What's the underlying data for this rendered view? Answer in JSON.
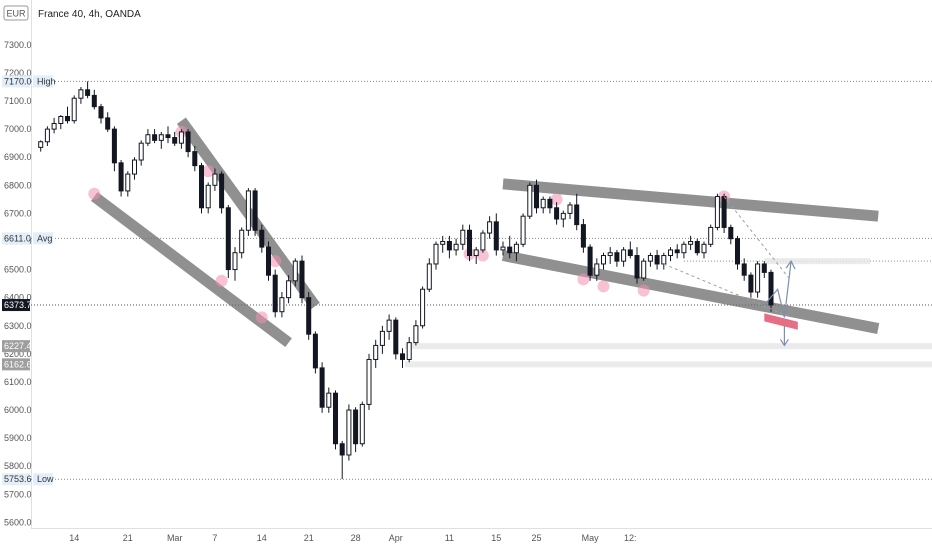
{
  "header": {
    "currency_badge": "EUR",
    "title": "France 40, 4h, OANDA"
  },
  "chart_data": {
    "type": "candlestick",
    "ylim": [
      5580,
      7360
    ],
    "y_ticks": [
      5600,
      5700,
      5800,
      5900,
      6000,
      6100,
      6200,
      6300,
      6400,
      6500,
      6600,
      6700,
      6800,
      6900,
      7000,
      7100,
      7200,
      7300
    ],
    "x_ticks": [
      "14",
      "21",
      "Mar",
      "7",
      "14",
      "21",
      "28",
      "Apr",
      "11",
      "15",
      "25",
      "May",
      "12:"
    ],
    "levels": [
      {
        "label": "High",
        "value_text": "7170.0",
        "value": 7170,
        "style": "dotted"
      },
      {
        "label": "Avg",
        "value_text": "6611.0",
        "value": 6611,
        "style": "dotted"
      },
      {
        "label": "",
        "value_text": "6373.7",
        "value": 6373.7,
        "style": "current"
      },
      {
        "label": "Low",
        "value_text": "5753.6",
        "value": 5753.6,
        "style": "dotted"
      }
    ],
    "zone_labels": [
      {
        "value_text": "6227.4",
        "value": 6227.4
      },
      {
        "value_text": "6162.6",
        "value": 6162.6
      }
    ],
    "extra_level": 6530,
    "channels": [
      {
        "from": [
          8,
          6760
        ],
        "to": [
          37,
          6240
        ]
      },
      {
        "from": [
          21,
          7030
        ],
        "to": [
          41,
          6370
        ]
      },
      {
        "from": [
          69,
          6550
        ],
        "to": [
          125,
          6290
        ]
      },
      {
        "from": [
          69,
          6805
        ],
        "to": [
          125,
          6690
        ]
      }
    ],
    "touch_points": [
      {
        "x": 8,
        "y": 6770
      },
      {
        "x": 21,
        "y": 6990
      },
      {
        "x": 25,
        "y": 6850
      },
      {
        "x": 27,
        "y": 6460
      },
      {
        "x": 33,
        "y": 6330
      },
      {
        "x": 35,
        "y": 6530
      },
      {
        "x": 64,
        "y": 6555
      },
      {
        "x": 66,
        "y": 6550
      },
      {
        "x": 77,
        "y": 6750
      },
      {
        "x": 81,
        "y": 6465
      },
      {
        "x": 84,
        "y": 6440
      },
      {
        "x": 90,
        "y": 6425
      },
      {
        "x": 102,
        "y": 6760
      }
    ],
    "candles": [
      [
        6935,
        6960,
        6920,
        6955
      ],
      [
        6955,
        7010,
        6940,
        7000
      ],
      [
        7000,
        7040,
        6985,
        7020
      ],
      [
        7020,
        7050,
        7000,
        7045
      ],
      [
        7045,
        7080,
        7020,
        7030
      ],
      [
        7030,
        7120,
        7020,
        7110
      ],
      [
        7110,
        7150,
        7090,
        7140
      ],
      [
        7140,
        7170,
        7110,
        7120
      ],
      [
        7120,
        7140,
        7070,
        7080
      ],
      [
        7080,
        7090,
        7020,
        7040
      ],
      [
        7040,
        7060,
        6990,
        7000
      ],
      [
        7000,
        7010,
        6850,
        6880
      ],
      [
        6880,
        6890,
        6760,
        6780
      ],
      [
        6780,
        6850,
        6760,
        6840
      ],
      [
        6840,
        6900,
        6820,
        6890
      ],
      [
        6890,
        6960,
        6870,
        6950
      ],
      [
        6950,
        7000,
        6940,
        6980
      ],
      [
        6980,
        7000,
        6950,
        6960
      ],
      [
        6960,
        6990,
        6930,
        6980
      ],
      [
        6980,
        7010,
        6950,
        6970
      ],
      [
        6970,
        6990,
        6940,
        6950
      ],
      [
        6950,
        7000,
        6930,
        6990
      ],
      [
        6990,
        7000,
        6900,
        6920
      ],
      [
        6920,
        6940,
        6850,
        6870
      ],
      [
        6870,
        6880,
        6700,
        6720
      ],
      [
        6720,
        6810,
        6700,
        6800
      ],
      [
        6800,
        6860,
        6780,
        6840
      ],
      [
        6840,
        6850,
        6700,
        6720
      ],
      [
        6720,
        6730,
        6470,
        6500
      ],
      [
        6500,
        6580,
        6460,
        6560
      ],
      [
        6560,
        6650,
        6540,
        6640
      ],
      [
        6640,
        6790,
        6620,
        6780
      ],
      [
        6780,
        6790,
        6620,
        6640
      ],
      [
        6640,
        6660,
        6560,
        6580
      ],
      [
        6580,
        6600,
        6460,
        6480
      ],
      [
        6480,
        6500,
        6330,
        6350
      ],
      [
        6350,
        6420,
        6330,
        6400
      ],
      [
        6400,
        6480,
        6380,
        6460
      ],
      [
        6460,
        6540,
        6440,
        6530
      ],
      [
        6530,
        6550,
        6380,
        6400
      ],
      [
        6400,
        6420,
        6250,
        6270
      ],
      [
        6270,
        6280,
        6130,
        6150
      ],
      [
        6150,
        6170,
        5990,
        6010
      ],
      [
        6010,
        6080,
        5990,
        6060
      ],
      [
        6060,
        6070,
        5860,
        5880
      ],
      [
        5880,
        5890,
        5754,
        5840
      ],
      [
        5840,
        6020,
        5820,
        6000
      ],
      [
        6000,
        6010,
        5850,
        5880
      ],
      [
        5880,
        6030,
        5870,
        6020
      ],
      [
        6020,
        6200,
        6000,
        6180
      ],
      [
        6180,
        6250,
        6150,
        6230
      ],
      [
        6230,
        6300,
        6200,
        6280
      ],
      [
        6280,
        6340,
        6250,
        6320
      ],
      [
        6320,
        6330,
        6180,
        6200
      ],
      [
        6200,
        6220,
        6150,
        6180
      ],
      [
        6180,
        6260,
        6170,
        6240
      ],
      [
        6240,
        6320,
        6230,
        6300
      ],
      [
        6300,
        6440,
        6290,
        6430
      ],
      [
        6430,
        6540,
        6420,
        6520
      ],
      [
        6520,
        6600,
        6500,
        6590
      ],
      [
        6590,
        6620,
        6560,
        6600
      ],
      [
        6600,
        6620,
        6540,
        6570
      ],
      [
        6570,
        6610,
        6550,
        6590
      ],
      [
        6590,
        6660,
        6570,
        6640
      ],
      [
        6640,
        6660,
        6530,
        6550
      ],
      [
        6550,
        6580,
        6520,
        6570
      ],
      [
        6570,
        6640,
        6560,
        6630
      ],
      [
        6630,
        6690,
        6610,
        6670
      ],
      [
        6670,
        6700,
        6550,
        6570
      ],
      [
        6570,
        6600,
        6550,
        6580
      ],
      [
        6580,
        6620,
        6540,
        6560
      ],
      [
        6560,
        6600,
        6530,
        6590
      ],
      [
        6590,
        6700,
        6580,
        6690
      ],
      [
        6690,
        6810,
        6680,
        6800
      ],
      [
        6800,
        6820,
        6700,
        6720
      ],
      [
        6720,
        6760,
        6700,
        6750
      ],
      [
        6750,
        6760,
        6700,
        6720
      ],
      [
        6720,
        6740,
        6660,
        6680
      ],
      [
        6680,
        6710,
        6650,
        6700
      ],
      [
        6700,
        6740,
        6680,
        6730
      ],
      [
        6730,
        6770,
        6640,
        6660
      ],
      [
        6660,
        6680,
        6560,
        6580
      ],
      [
        6580,
        6590,
        6460,
        6480
      ],
      [
        6480,
        6540,
        6460,
        6520
      ],
      [
        6520,
        6560,
        6500,
        6550
      ],
      [
        6550,
        6580,
        6520,
        6560
      ],
      [
        6560,
        6570,
        6510,
        6530
      ],
      [
        6530,
        6580,
        6510,
        6570
      ],
      [
        6570,
        6600,
        6540,
        6550
      ],
      [
        6550,
        6580,
        6450,
        6470
      ],
      [
        6470,
        6540,
        6460,
        6530
      ],
      [
        6530,
        6560,
        6510,
        6550
      ],
      [
        6550,
        6570,
        6500,
        6520
      ],
      [
        6520,
        6560,
        6500,
        6550
      ],
      [
        6550,
        6580,
        6530,
        6570
      ],
      [
        6570,
        6590,
        6540,
        6560
      ],
      [
        6560,
        6600,
        6540,
        6590
      ],
      [
        6590,
        6620,
        6570,
        6600
      ],
      [
        6600,
        6610,
        6550,
        6560
      ],
      [
        6560,
        6600,
        6540,
        6590
      ],
      [
        6590,
        6660,
        6580,
        6650
      ],
      [
        6650,
        6770,
        6640,
        6760
      ],
      [
        6760,
        6770,
        6630,
        6650
      ],
      [
        6650,
        6660,
        6590,
        6610
      ],
      [
        6610,
        6620,
        6500,
        6520
      ],
      [
        6520,
        6540,
        6460,
        6480
      ],
      [
        6480,
        6490,
        6400,
        6420
      ],
      [
        6420,
        6530,
        6400,
        6520
      ],
      [
        6520,
        6530,
        6470,
        6490
      ],
      [
        6490,
        6500,
        6350,
        6374
      ]
    ],
    "x_tick_positions": [
      5,
      13,
      20,
      26,
      33,
      40,
      47,
      53,
      61,
      68,
      74,
      82,
      88
    ],
    "x_range": [
      -1,
      129
    ],
    "projection": {
      "x_start": 108,
      "x_end": 112,
      "up_value": 6530,
      "down_value": 6230
    },
    "highlight_zone": {
      "from": [
        108,
        6330
      ],
      "to": [
        113,
        6300
      ]
    }
  }
}
